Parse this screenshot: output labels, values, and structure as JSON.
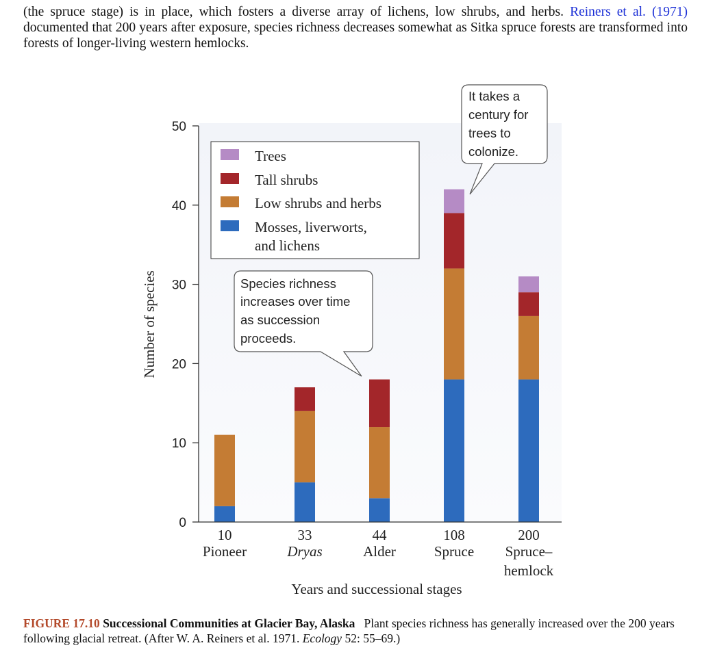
{
  "intro": {
    "text_before": "(the spruce stage) is in place, which fosters a diverse array of lichens, low shrubs, and herbs.",
    "citation": "Reiners et al. (1971)",
    "text_after": "documented that 200 years after exposure, species richness decreases somewhat as Sitka spruce forests are transformed into forests of longer-living western hemlocks."
  },
  "chart_data": {
    "type": "bar",
    "stacked": true,
    "categories": [
      {
        "year": "10",
        "stage": "Pioneer",
        "italic": false
      },
      {
        "year": "33",
        "stage": "Dryas",
        "italic": true
      },
      {
        "year": "44",
        "stage": "Alder",
        "italic": false
      },
      {
        "year": "108",
        "stage": "Spruce",
        "italic": false
      },
      {
        "year": "200",
        "stage": "Spruce–",
        "stage2": "hemlock",
        "italic": false
      }
    ],
    "series": [
      {
        "name": "Mosses, liverworts, and lichens",
        "legend_lines": [
          "Mosses, liverworts,",
          "and lichens"
        ],
        "color": "#2d6bbd",
        "values": [
          2,
          5,
          3,
          18,
          18
        ]
      },
      {
        "name": "Low shrubs and herbs",
        "legend_lines": [
          "Low shrubs and herbs"
        ],
        "color": "#c47c34",
        "values": [
          9,
          9,
          9,
          14,
          8
        ]
      },
      {
        "name": "Tall shrubs",
        "legend_lines": [
          "Tall shrubs"
        ],
        "color": "#a3262a",
        "values": [
          0,
          3,
          6,
          7,
          3
        ]
      },
      {
        "name": "Trees",
        "legend_lines": [
          "Trees"
        ],
        "color": "#b58bc5",
        "values": [
          0,
          0,
          0,
          3,
          2
        ]
      }
    ],
    "ylabel": "Number of species",
    "xlabel": "Years and successional stages",
    "ylim": [
      0,
      50
    ],
    "yticks": [
      0,
      10,
      20,
      30,
      40,
      50
    ],
    "legend_placement": "top-center",
    "annotations": [
      {
        "id": "richness",
        "lines": [
          "Species richness",
          "increases over time",
          "as succession",
          "proceeds."
        ]
      },
      {
        "id": "trees",
        "lines": [
          "It takes a",
          "century for",
          "trees to",
          "colonize."
        ]
      }
    ]
  },
  "caption": {
    "number": "FIGURE 17.10",
    "title": "Successional Communities at Glacier Bay, Alaska",
    "body": "Plant species richness has generally increased over the 200 years following glacial retreat. (After W. A. Reiners et al. 1971.",
    "journal": "Ecology",
    "ref": "52: 55–69.)"
  }
}
